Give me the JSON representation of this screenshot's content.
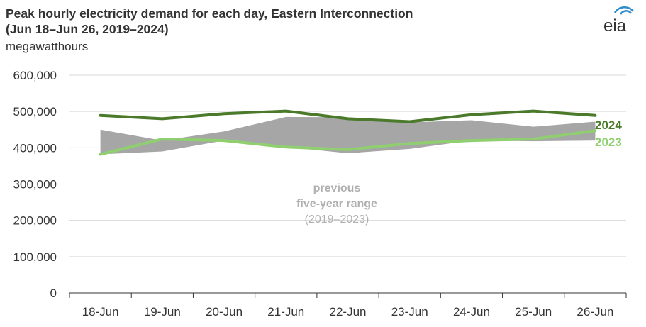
{
  "header": {
    "title_line1": "Peak hourly electricity demand for each day, Eastern Interconnection",
    "title_line2": "(Jun 18–Jun 26, 2019–2024)",
    "subtitle": "megawatthours",
    "logo_text": "eia"
  },
  "chart_data": {
    "type": "line",
    "title": "Peak hourly electricity demand for each day, Eastern Interconnection (Jun 18–Jun 26, 2019–2024)",
    "ylabel": "megawatthours",
    "categories": [
      "18-Jun",
      "19-Jun",
      "20-Jun",
      "21-Jun",
      "22-Jun",
      "23-Jun",
      "24-Jun",
      "25-Jun",
      "26-Jun"
    ],
    "ylim": [
      0,
      600000
    ],
    "yticks": [
      0,
      100000,
      200000,
      300000,
      400000,
      500000,
      600000
    ],
    "ytick_labels": [
      "0",
      "100,000",
      "200,000",
      "300,000",
      "400,000",
      "500,000",
      "600,000"
    ],
    "grid": true,
    "range": {
      "label_line1": "previous",
      "label_line2": "five-year range",
      "label_line3": "(2019–2023)",
      "color": "#a6a6a6",
      "max": [
        450000,
        420000,
        445000,
        485000,
        484000,
        470000,
        476000,
        458000,
        472000
      ],
      "min": [
        382000,
        390000,
        420000,
        402000,
        385000,
        397000,
        420000,
        418000,
        420000
      ]
    },
    "series": [
      {
        "name": "2024",
        "color": "#4a7a2a",
        "values": [
          489000,
          480000,
          494000,
          501000,
          480000,
          472000,
          491000,
          501000,
          489000
        ]
      },
      {
        "name": "2023",
        "color": "#8fcf70",
        "values": [
          382000,
          424000,
          420000,
          402000,
          395000,
          412000,
          420000,
          424000,
          447000
        ]
      }
    ]
  }
}
